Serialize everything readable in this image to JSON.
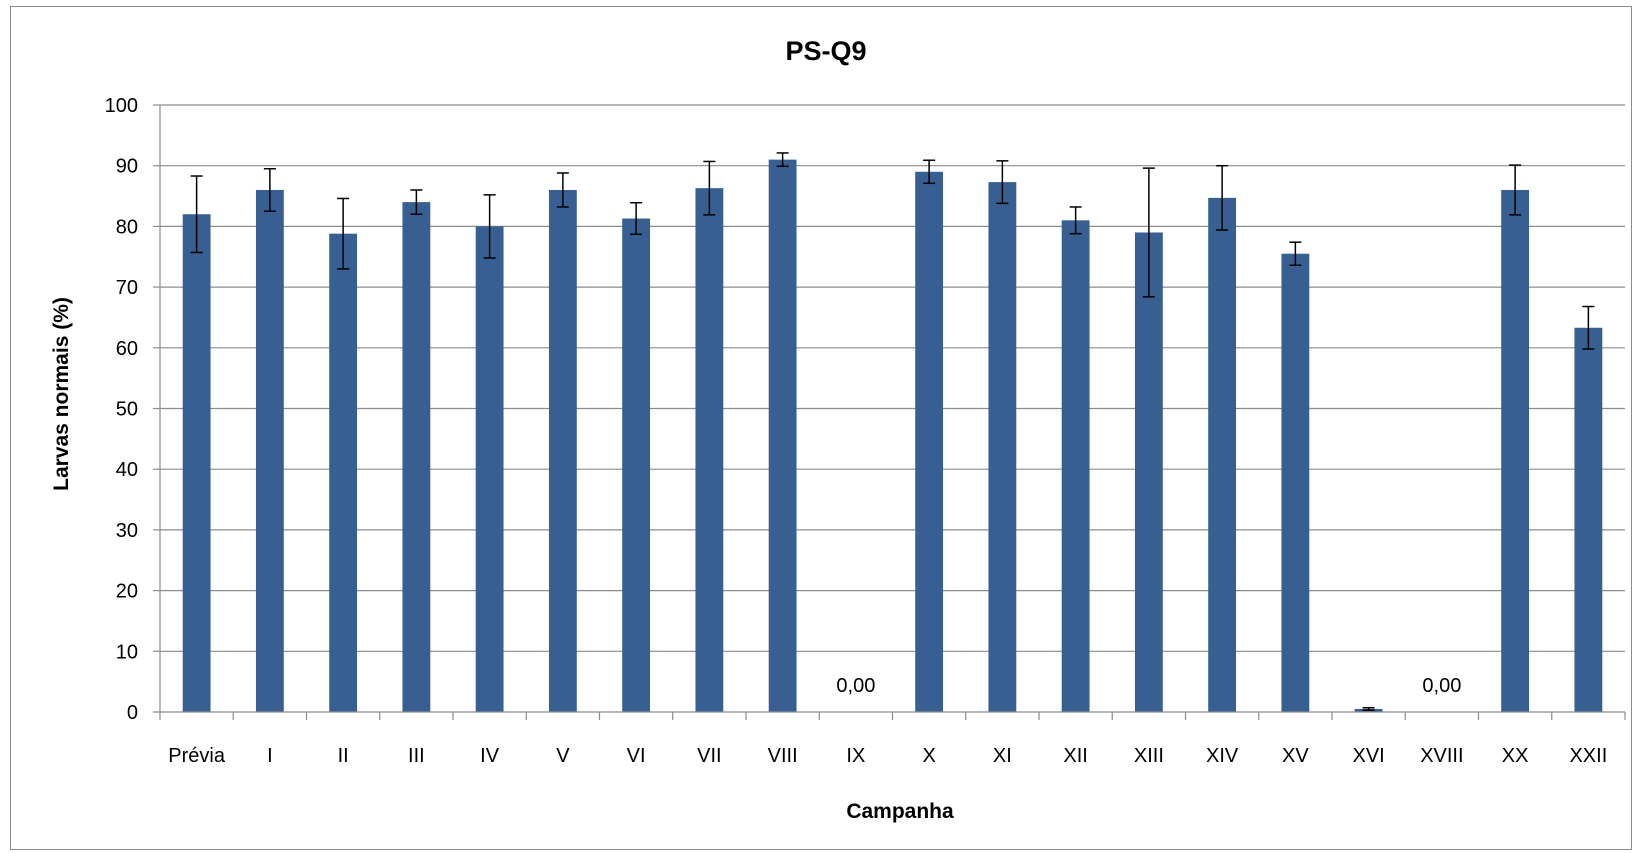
{
  "chart_data": {
    "type": "bar",
    "title": "PS-Q9",
    "xlabel": "Campanha",
    "ylabel": "Larvas normais (%)",
    "ylim": [
      0,
      100
    ],
    "yticks": [
      0,
      10,
      20,
      30,
      40,
      50,
      60,
      70,
      80,
      90,
      100
    ],
    "grid": true,
    "bar_color": "#375F91",
    "categories": [
      "Prévia",
      "I",
      "II",
      "III",
      "IV",
      "V",
      "VI",
      "VII",
      "VIII",
      "IX",
      "X",
      "XI",
      "XII",
      "XIII",
      "XIV",
      "XV",
      "XVI",
      "XVIII",
      "XX",
      "XXII"
    ],
    "values": [
      82.0,
      86.0,
      78.8,
      84.0,
      80.0,
      86.0,
      81.3,
      86.3,
      91.0,
      0,
      89.0,
      87.3,
      81.0,
      79.0,
      84.7,
      75.5,
      0.5,
      0,
      86.0,
      63.3
    ],
    "error": [
      6.3,
      3.5,
      5.8,
      2.0,
      5.2,
      2.8,
      2.6,
      4.4,
      1.1,
      null,
      1.9,
      3.5,
      2.2,
      10.6,
      5.3,
      1.9,
      0.2,
      null,
      4.1,
      3.5
    ],
    "data_labels": [
      {
        "category": "IX",
        "text": "0,00"
      },
      {
        "category": "XVIII",
        "text": "0,00"
      }
    ]
  }
}
